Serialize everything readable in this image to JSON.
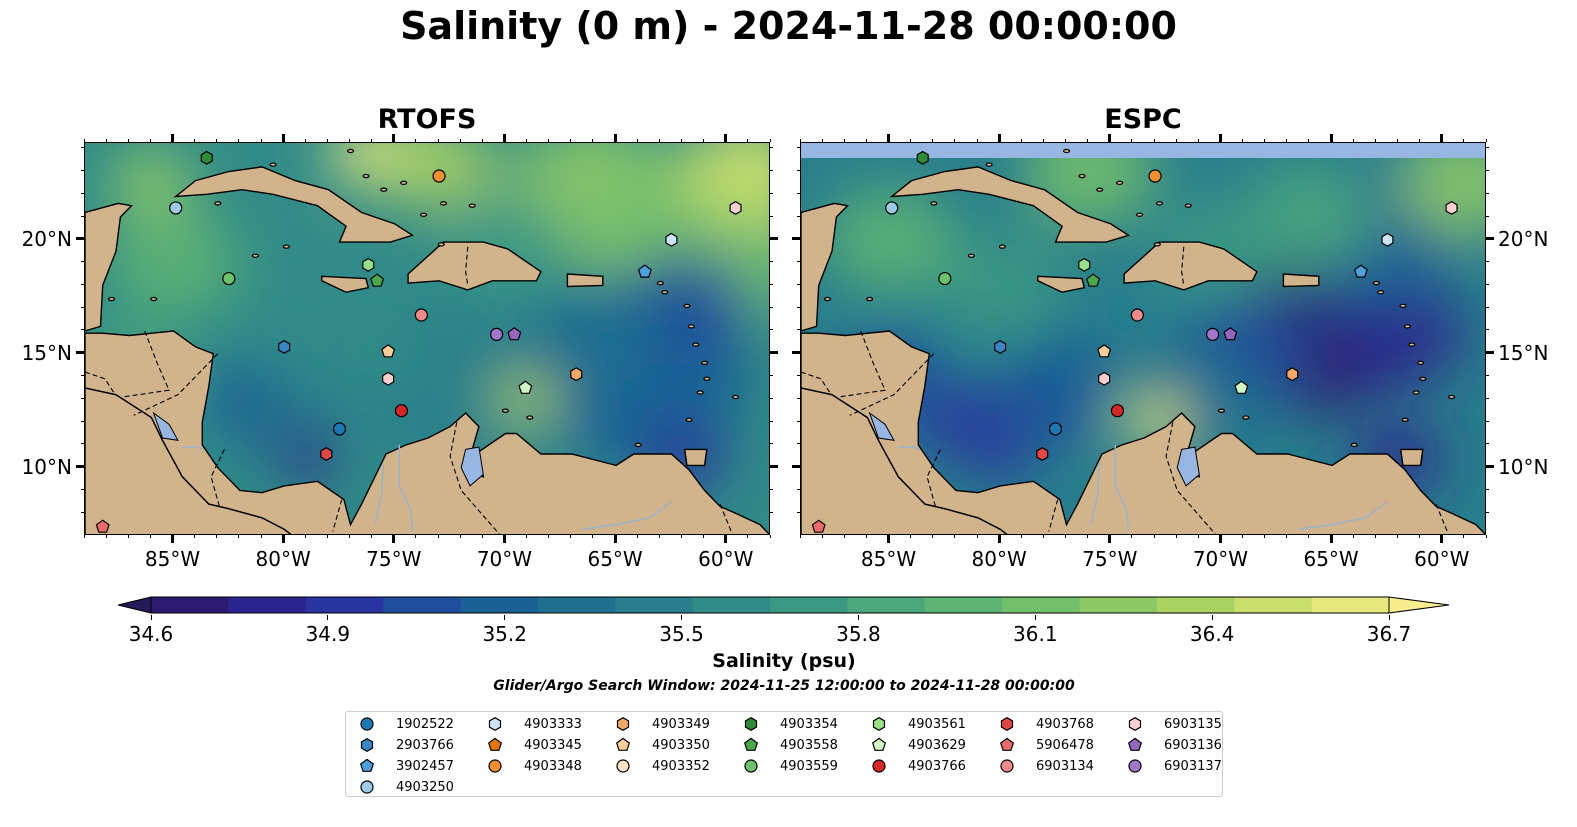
{
  "title": "Salinity (0 m) - 2024-11-28 00:00:00",
  "panels": [
    {
      "key": "rtofs",
      "title": "RTOFS"
    },
    {
      "key": "espc",
      "title": "ESPC"
    }
  ],
  "map": {
    "lon_range": [
      -89.0,
      -58.0
    ],
    "lat_range": [
      7.0,
      24.25
    ],
    "x_ticks": [
      {
        "lon": -85,
        "label": "85°W"
      },
      {
        "lon": -80,
        "label": "80°W"
      },
      {
        "lon": -75,
        "label": "75°W"
      },
      {
        "lon": -70,
        "label": "70°W"
      },
      {
        "lon": -65,
        "label": "65°W"
      },
      {
        "lon": -60,
        "label": "60°W"
      }
    ],
    "y_ticks": [
      {
        "lat": 10,
        "label": "10°N"
      },
      {
        "lat": 15,
        "label": "15°N"
      },
      {
        "lat": 20,
        "label": "20°N"
      }
    ]
  },
  "colorbar": {
    "label": "Salinity (psu)",
    "min": 34.6,
    "max": 36.7,
    "ticks": [
      "34.6",
      "34.9",
      "35.2",
      "35.5",
      "35.8",
      "36.1",
      "36.4",
      "36.7"
    ],
    "colors": [
      "#2c1a6e",
      "#2b238e",
      "#28349f",
      "#1f4e9c",
      "#1a6196",
      "#1f7090",
      "#287e8c",
      "#318b88",
      "#3b9983",
      "#4ba77c",
      "#5db474",
      "#73c06c",
      "#8dc966",
      "#abd363",
      "#c9de6b",
      "#e6e87b"
    ],
    "extend_low": "#241a5a",
    "extend_high": "#f8ee90",
    "land_color": "#d2b48c",
    "lake_color": "#97b6e1"
  },
  "search_window": "Glider/Argo Search Window: 2024-11-25 12:00:00 to 2024-11-28 00:00:00",
  "legend": [
    {
      "id": "1902522",
      "shape": "circle",
      "color": "#1f77b4"
    },
    {
      "id": "2903766",
      "shape": "hexagon",
      "color": "#3a86c5"
    },
    {
      "id": "3902457",
      "shape": "pentagon",
      "color": "#4ea0dc"
    },
    {
      "id": "4903250",
      "shape": "circle",
      "color": "#9ecae9"
    },
    {
      "id": "4903333",
      "shape": "hexagon",
      "color": "#cde4f7"
    },
    {
      "id": "4903345",
      "shape": "pentagon",
      "color": "#e8740f"
    },
    {
      "id": "4903348",
      "shape": "circle",
      "color": "#f2902f"
    },
    {
      "id": "4903349",
      "shape": "hexagon",
      "color": "#f5a868"
    },
    {
      "id": "4903350",
      "shape": "pentagon",
      "color": "#fbcd9c"
    },
    {
      "id": "4903352",
      "shape": "circle",
      "color": "#fde0c6"
    },
    {
      "id": "4903354",
      "shape": "hexagon",
      "color": "#2e8b3a"
    },
    {
      "id": "4903558",
      "shape": "pentagon",
      "color": "#4aa84a"
    },
    {
      "id": "4903559",
      "shape": "circle",
      "color": "#6cc16a"
    },
    {
      "id": "4903561",
      "shape": "hexagon",
      "color": "#98df8a"
    },
    {
      "id": "4903629",
      "shape": "pentagon",
      "color": "#d2f5c4"
    },
    {
      "id": "4903766",
      "shape": "circle",
      "color": "#d62728"
    },
    {
      "id": "4903768",
      "shape": "hexagon",
      "color": "#e04848"
    },
    {
      "id": "5906478",
      "shape": "pentagon",
      "color": "#ec6b6b"
    },
    {
      "id": "6903134",
      "shape": "circle",
      "color": "#f08a8a"
    },
    {
      "id": "6903135",
      "shape": "hexagon",
      "color": "#fbd0d0"
    },
    {
      "id": "6903136",
      "shape": "pentagon",
      "color": "#9467bd"
    },
    {
      "id": "6903137",
      "shape": "circle",
      "color": "#a277cc"
    }
  ],
  "markers": [
    {
      "id": "4903354",
      "lon": -83.5,
      "lat": 23.6
    },
    {
      "id": "4903348",
      "lon": -73.0,
      "lat": 22.8
    },
    {
      "id": "4903250",
      "lon": -84.9,
      "lat": 21.4
    },
    {
      "id": "6903135",
      "lon": -59.6,
      "lat": 21.4
    },
    {
      "id": "4903333",
      "lon": -62.5,
      "lat": 20.0
    },
    {
      "id": "4903561",
      "lon": -76.2,
      "lat": 18.9
    },
    {
      "id": "3902457",
      "lon": -63.7,
      "lat": 18.6
    },
    {
      "id": "4903559",
      "lon": -82.5,
      "lat": 18.3
    },
    {
      "id": "4903558",
      "lon": -75.8,
      "lat": 18.2
    },
    {
      "id": "6903134",
      "lon": -73.8,
      "lat": 16.7
    },
    {
      "id": "6903137",
      "lon": -70.4,
      "lat": 15.85
    },
    {
      "id": "6903136",
      "lon": -69.6,
      "lat": 15.85
    },
    {
      "id": "2903766",
      "lon": -80.0,
      "lat": 15.3
    },
    {
      "id": "4903350",
      "lon": -75.3,
      "lat": 15.1
    },
    {
      "id": "4903349",
      "lon": -66.8,
      "lat": 14.1
    },
    {
      "id": "6903135",
      "lon": -75.3,
      "lat": 13.9
    },
    {
      "id": "4903629",
      "lon": -69.1,
      "lat": 13.5
    },
    {
      "id": "4903766",
      "lon": -74.7,
      "lat": 12.5
    },
    {
      "id": "1902522",
      "lon": -77.5,
      "lat": 11.7
    },
    {
      "id": "4903768",
      "lon": -78.1,
      "lat": 10.6
    },
    {
      "id": "5906478",
      "lon": -88.2,
      "lat": 7.4
    }
  ]
}
